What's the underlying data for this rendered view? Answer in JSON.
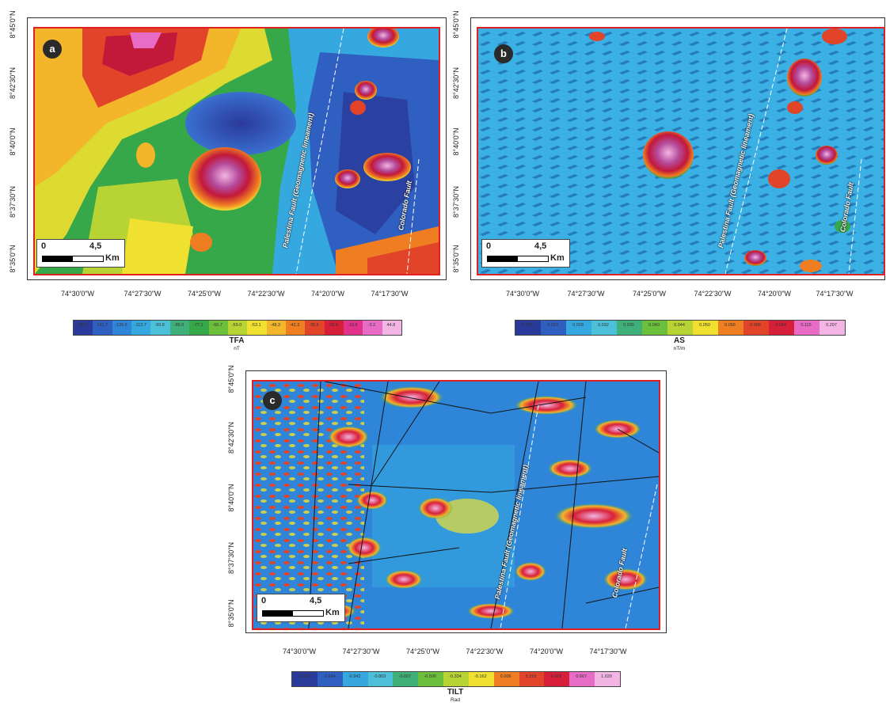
{
  "panels": [
    {
      "id": "a",
      "badge": "a",
      "faults": {
        "palestina": "Palestina Fault (Geomagnetic lineament)",
        "colorado": "Colorado Fault"
      },
      "scale": {
        "start": "0",
        "end": "4,5",
        "unit": "Km"
      },
      "lat_ticks": [
        "8°45'0\"N",
        "8°42'30\"N",
        "8°40'0\"N",
        "8°37'30\"N",
        "8°35'0\"N"
      ],
      "lon_ticks": [
        "74°30'0\"W",
        "74°27'30\"W",
        "74°25'0\"W",
        "74°22'30\"W",
        "74°20'0\"W",
        "74°17'30\"W"
      ],
      "colorbar": {
        "title": "TFA",
        "unit": "nT",
        "ticks": [
          "-186.2",
          "-141.7",
          "-126.6",
          "-113.7",
          "-99.8",
          "-89.0",
          "-77.1",
          "-66.7",
          "-59.0",
          "-53.1",
          "-48.3",
          "-42.3",
          "-35.6",
          "-28.8",
          "-19.9",
          "-3.2",
          "44.8"
        ]
      }
    },
    {
      "id": "b",
      "badge": "b",
      "faults": {
        "palestina": "Palestina Fault (Geomagnetic lineament)",
        "colorado": "Colorado Fault"
      },
      "scale": {
        "start": "0",
        "end": "4,5",
        "unit": "Km"
      },
      "lat_ticks": [
        "8°45'0\"N",
        "8°42'30\"N",
        "8°40'0\"N",
        "8°37'30\"N",
        "8°35'0\"N"
      ],
      "lon_ticks": [
        "74°30'0\"W",
        "74°27'30\"W",
        "74°25'0\"W",
        "74°22'30\"W",
        "74°20'0\"W",
        "74°17'30\"W"
      ],
      "colorbar": {
        "title": "AS",
        "unit": "nT/m",
        "ticks": [
          "0.015",
          "0.023",
          "0.028",
          "0.032",
          "0.036",
          "0.040",
          "0.044",
          "0.050",
          "0.056",
          "0.066",
          "0.084",
          "0.115",
          "0.297"
        ]
      }
    },
    {
      "id": "c",
      "badge": "c",
      "faults": {
        "palestina": "Palestina Fault (Geomagnetic lineament)",
        "colorado": "Colorado Fault"
      },
      "scale": {
        "start": "0",
        "end": "4,5",
        "unit": "Km"
      },
      "lat_ticks": [
        "8°45'0\"N",
        "8°42'30\"N",
        "8°40'0\"N",
        "8°37'30\"N",
        "8°35'0\"N"
      ],
      "lon_ticks": [
        "74°30'0\"W",
        "74°27'30\"W",
        "74°25'0\"W",
        "74°22'30\"W",
        "74°20'0\"W",
        "74°17'30\"W"
      ],
      "colorbar": {
        "title": "TILT",
        "unit": "Rad",
        "ticks": [
          "-1.329",
          "-1.094",
          "-0.942",
          "-0.803",
          "-0.657",
          "-0.500",
          "-0.334",
          "-0.162",
          "0.006",
          "0.216",
          "0.428",
          "0.667",
          "1.020"
        ]
      }
    }
  ],
  "palette": [
    "#2a3a9a",
    "#2f5fc0",
    "#2f86d8",
    "#35a8e0",
    "#4cc0d8",
    "#3fb07a",
    "#37a84a",
    "#6cbf3a",
    "#b8d334",
    "#f0e030",
    "#f3b52a",
    "#ef7d22",
    "#e2442a",
    "#d81f3a",
    "#e2338c",
    "#e86cc6",
    "#f2b5e4"
  ]
}
